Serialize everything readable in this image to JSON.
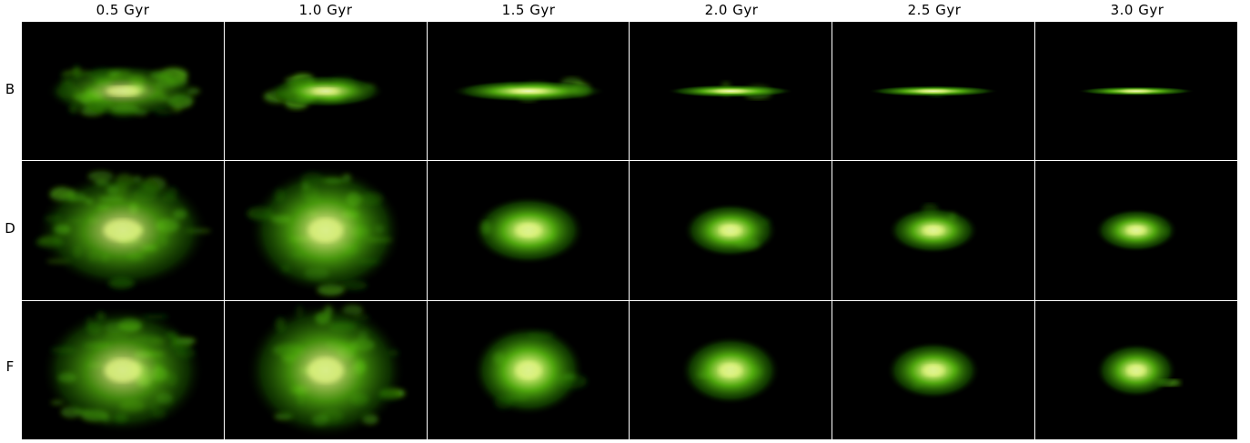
{
  "figure": {
    "columns": [
      {
        "label": "0.5 Gyr"
      },
      {
        "label": "1.0 Gyr"
      },
      {
        "label": "1.5 Gyr"
      },
      {
        "label": "2.0 Gyr"
      },
      {
        "label": "2.5 Gyr"
      },
      {
        "label": "3.0 Gyr"
      }
    ],
    "rows": [
      {
        "label": "B"
      },
      {
        "label": "D"
      },
      {
        "label": "F"
      }
    ],
    "colors": {
      "background": "#000000",
      "emission_outer": "#1a5a00",
      "emission_mid": "#58b810",
      "emission_inner": "#d8f07a",
      "core": "#ffffff"
    }
  }
}
